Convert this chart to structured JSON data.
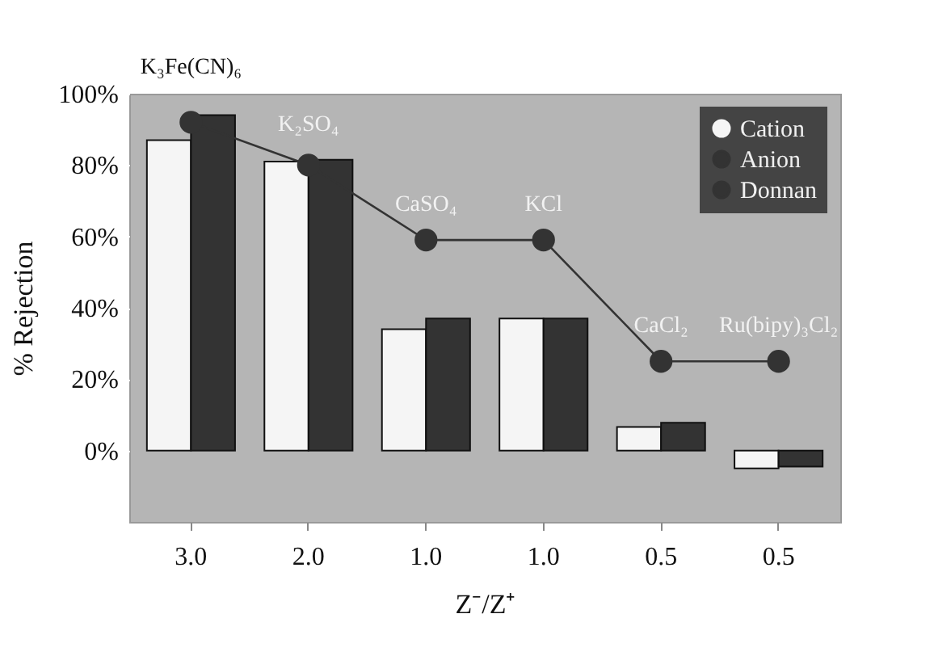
{
  "chart_data": {
    "type": "bar",
    "xlabel": "Z⁻/Z⁺",
    "ylabel": "% Rejection",
    "categories": [
      "3.0",
      "2.0",
      "1.0",
      "1.0",
      "0.5",
      "0.5"
    ],
    "series": [
      {
        "name": "Cation",
        "color": "#f5f5f5",
        "values": [
          87,
          81,
          34,
          37,
          6.6,
          -5
        ]
      },
      {
        "name": "Anion",
        "color": "#333333",
        "values": [
          94,
          81.5,
          37,
          37,
          7.8,
          -4.5
        ]
      },
      {
        "name": "Donnan",
        "type": "line",
        "marker": "circle",
        "color": "#333333",
        "values": [
          92,
          80,
          59,
          59,
          25,
          25
        ]
      }
    ],
    "ylim": [
      -20,
      100
    ],
    "yticks": [
      {
        "value": 0,
        "label": "0%"
      },
      {
        "value": 20,
        "label": "20%"
      },
      {
        "value": 40,
        "label": "40%"
      },
      {
        "value": 60,
        "label": "60%"
      },
      {
        "value": 80,
        "label": "80%"
      },
      {
        "value": 100,
        "label": "100%"
      }
    ],
    "legend": "top right",
    "grid": false,
    "annotations": [
      "K₃Fe(CN)₆",
      "K₂SO₄",
      "CaSO₄",
      "KCl",
      "CaCl₂",
      "Ru(bipy)₃Cl₂"
    ]
  }
}
